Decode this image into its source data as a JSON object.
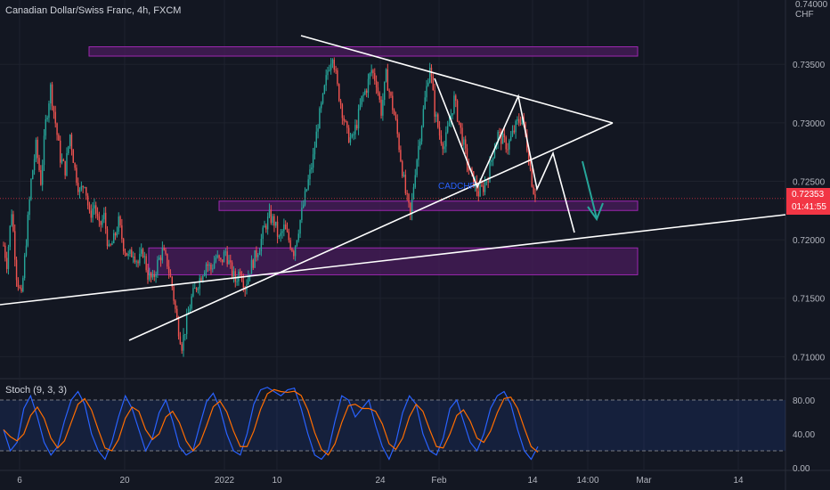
{
  "header": {
    "title": "Canadian Dollar/Swiss Franc, 4h, FXCM"
  },
  "price_axis": {
    "currency": "CHF",
    "top_label": "0.74000",
    "ticks": [
      "0.73500",
      "0.73000",
      "0.72500",
      "0.72000",
      "0.71500",
      "0.71000"
    ],
    "current_price": "0.72353",
    "countdown": "01:41:55"
  },
  "stoch": {
    "label": "Stoch (9, 3, 3)",
    "ticks": [
      "80.00",
      "40.00",
      "0.00"
    ]
  },
  "time_axis": {
    "ticks": [
      "6",
      "20",
      "2022",
      "10",
      "24",
      "Feb",
      "14",
      "14:00",
      "Mar",
      "14"
    ]
  },
  "annotation_text": "CADCHF",
  "colors": {
    "background": "#131722",
    "up_candle": "#26a69a",
    "down_candle": "#ef5350",
    "zone_fill": "#4a1c5c",
    "zone_border": "#9c27b0",
    "trendline": "#ffffff",
    "stoch_k": "#2962ff",
    "stoch_d": "#ff6d00",
    "arrow": "#26a69a",
    "price_tag": "#f23645"
  },
  "chart_data": {
    "type": "candlestick",
    "title": "Canadian Dollar/Swiss Franc, 4h, FXCM",
    "ylim": [
      0.7085,
      0.7405
    ],
    "last_price": 0.72353,
    "price_path": [
      [
        0,
        0.7195
      ],
      [
        2,
        0.718
      ],
      [
        5,
        0.7225
      ],
      [
        8,
        0.717
      ],
      [
        11,
        0.715
      ],
      [
        14,
        0.72
      ],
      [
        17,
        0.725
      ],
      [
        20,
        0.728
      ],
      [
        23,
        0.725
      ],
      [
        26,
        0.73
      ],
      [
        29,
        0.733
      ],
      [
        32,
        0.73
      ],
      [
        35,
        0.727
      ],
      [
        38,
        0.726
      ],
      [
        41,
        0.729
      ],
      [
        44,
        0.726
      ],
      [
        47,
        0.724
      ],
      [
        50,
        0.725
      ],
      [
        53,
        0.722
      ],
      [
        56,
        0.723
      ],
      [
        59,
        0.721
      ],
      [
        62,
        0.722
      ],
      [
        65,
        0.719
      ],
      [
        68,
        0.72
      ],
      [
        71,
        0.7215
      ],
      [
        74,
        0.7195
      ],
      [
        77,
        0.7185
      ],
      [
        80,
        0.719
      ],
      [
        83,
        0.718
      ],
      [
        86,
        0.719
      ],
      [
        89,
        0.717
      ],
      [
        92,
        0.7165
      ],
      [
        95,
        0.718
      ],
      [
        98,
        0.719
      ],
      [
        101,
        0.718
      ],
      [
        104,
        0.716
      ],
      [
        107,
        0.713
      ],
      [
        110,
        0.711
      ],
      [
        113,
        0.713
      ],
      [
        116,
        0.715
      ],
      [
        119,
        0.716
      ],
      [
        122,
        0.717
      ],
      [
        125,
        0.718
      ],
      [
        128,
        0.7175
      ],
      [
        131,
        0.7185
      ],
      [
        134,
        0.718
      ],
      [
        137,
        0.719
      ],
      [
        140,
        0.7175
      ],
      [
        143,
        0.7165
      ],
      [
        146,
        0.7175
      ],
      [
        149,
        0.716
      ],
      [
        152,
        0.7175
      ],
      [
        155,
        0.7185
      ],
      [
        158,
        0.7195
      ],
      [
        161,
        0.721
      ],
      [
        164,
        0.722
      ],
      [
        167,
        0.7215
      ],
      [
        170,
        0.72
      ],
      [
        173,
        0.721
      ],
      [
        176,
        0.72
      ],
      [
        179,
        0.719
      ],
      [
        182,
        0.721
      ],
      [
        185,
        0.723
      ],
      [
        188,
        0.725
      ],
      [
        191,
        0.727
      ],
      [
        194,
        0.73
      ],
      [
        197,
        0.732
      ],
      [
        200,
        0.7345
      ],
      [
        203,
        0.736
      ],
      [
        206,
        0.733
      ],
      [
        209,
        0.731
      ],
      [
        212,
        0.729
      ],
      [
        215,
        0.7285
      ],
      [
        218,
        0.73
      ],
      [
        221,
        0.732
      ],
      [
        224,
        0.733
      ],
      [
        227,
        0.7345
      ],
      [
        230,
        0.7335
      ],
      [
        233,
        0.731
      ],
      [
        236,
        0.734
      ],
      [
        239,
        0.732
      ],
      [
        242,
        0.73
      ],
      [
        245,
        0.727
      ],
      [
        248,
        0.724
      ],
      [
        251,
        0.722
      ],
      [
        254,
        0.726
      ],
      [
        257,
        0.729
      ],
      [
        260,
        0.732
      ],
      [
        263,
        0.735
      ],
      [
        266,
        0.731
      ],
      [
        269,
        0.729
      ],
      [
        272,
        0.728
      ],
      [
        275,
        0.73
      ],
      [
        278,
        0.732
      ],
      [
        281,
        0.73
      ],
      [
        284,
        0.728
      ],
      [
        287,
        0.726
      ],
      [
        290,
        0.725
      ],
      [
        293,
        0.724
      ],
      [
        296,
        0.7245
      ],
      [
        299,
        0.7255
      ],
      [
        302,
        0.7275
      ],
      [
        305,
        0.729
      ],
      [
        308,
        0.7285
      ],
      [
        311,
        0.728
      ],
      [
        314,
        0.729
      ],
      [
        317,
        0.73
      ],
      [
        320,
        0.7305
      ],
      [
        323,
        0.728
      ],
      [
        326,
        0.725
      ],
      [
        328,
        0.7235
      ]
    ],
    "price_zones": [
      {
        "from": 0.7357,
        "to": 0.7365
      },
      {
        "from": 0.7225,
        "to": 0.7233
      },
      {
        "from": 0.717,
        "to": 0.7193
      }
    ],
    "stochastic": {
      "name": "Stoch (9, 3, 3)",
      "ylim": [
        0,
        100
      ],
      "levels": [
        80,
        20
      ],
      "k_values": [
        45,
        20,
        30,
        70,
        85,
        60,
        30,
        15,
        25,
        55,
        80,
        90,
        75,
        40,
        20,
        10,
        30,
        60,
        85,
        70,
        45,
        20,
        35,
        65,
        80,
        55,
        25,
        15,
        20,
        50,
        78,
        88,
        70,
        40,
        20,
        15,
        40,
        75,
        92,
        95,
        90,
        85,
        92,
        94,
        70,
        40,
        15,
        10,
        20,
        55,
        85,
        80,
        60,
        70,
        80,
        50,
        25,
        10,
        30,
        65,
        85,
        75,
        40,
        20,
        15,
        35,
        70,
        80,
        55,
        30,
        20,
        40,
        70,
        85,
        90,
        75,
        45,
        20,
        10,
        25
      ]
    }
  }
}
